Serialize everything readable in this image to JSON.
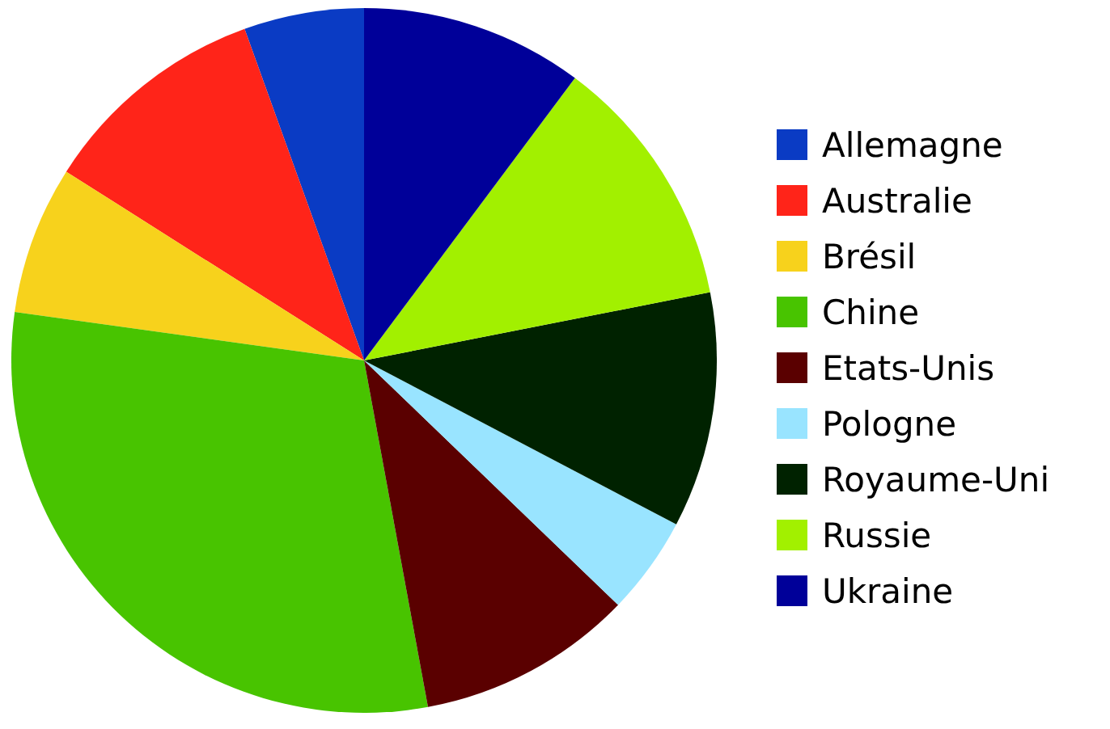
{
  "chart_data": {
    "type": "pie",
    "categories": [
      "Allemagne",
      "Australie",
      "Brésil",
      "Chine",
      "Etats-Unis",
      "Pologne",
      "Royaume-Uni",
      "Russie",
      "Ukraine"
    ],
    "values": [
      5.5,
      10.5,
      6.8,
      30.1,
      9.9,
      4.5,
      10.8,
      11.7,
      10.2
    ],
    "colors": [
      "#0a3bc4",
      "#ff2419",
      "#f7d21c",
      "#48c400",
      "#5a0000",
      "#99e4ff",
      "#002200",
      "#a2f000",
      "#000099"
    ],
    "legend": "right"
  }
}
